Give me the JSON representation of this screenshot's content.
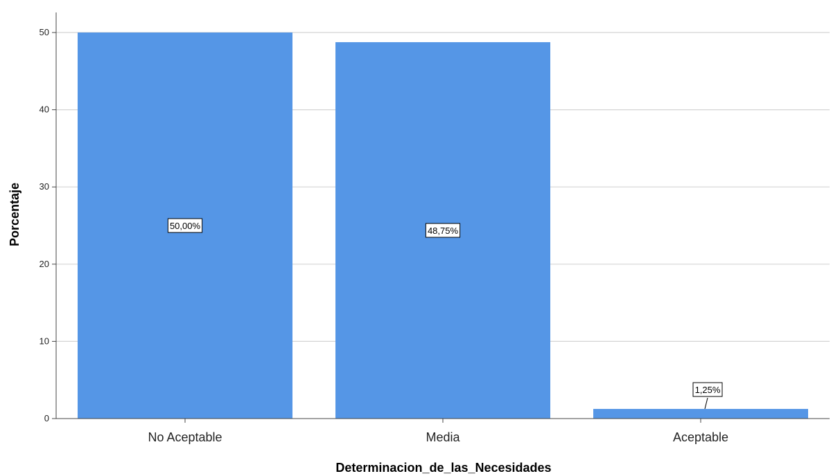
{
  "chart_data": {
    "type": "bar",
    "categories": [
      "No Aceptable",
      "Media",
      "Aceptable"
    ],
    "values": [
      50.0,
      48.75,
      1.25
    ],
    "data_labels": [
      "50,00%",
      "48,75%",
      "1,25%"
    ],
    "xlabel": "Determinacion_de_las_Necesidades",
    "ylabel": "Porcentaje",
    "ylim": [
      0,
      50
    ],
    "yticks": [
      0,
      10,
      20,
      30,
      40,
      50
    ],
    "grid": true,
    "colors": {
      "bar": "#5596e6",
      "grid": "#d4d4d4",
      "axis": "#444444"
    }
  }
}
